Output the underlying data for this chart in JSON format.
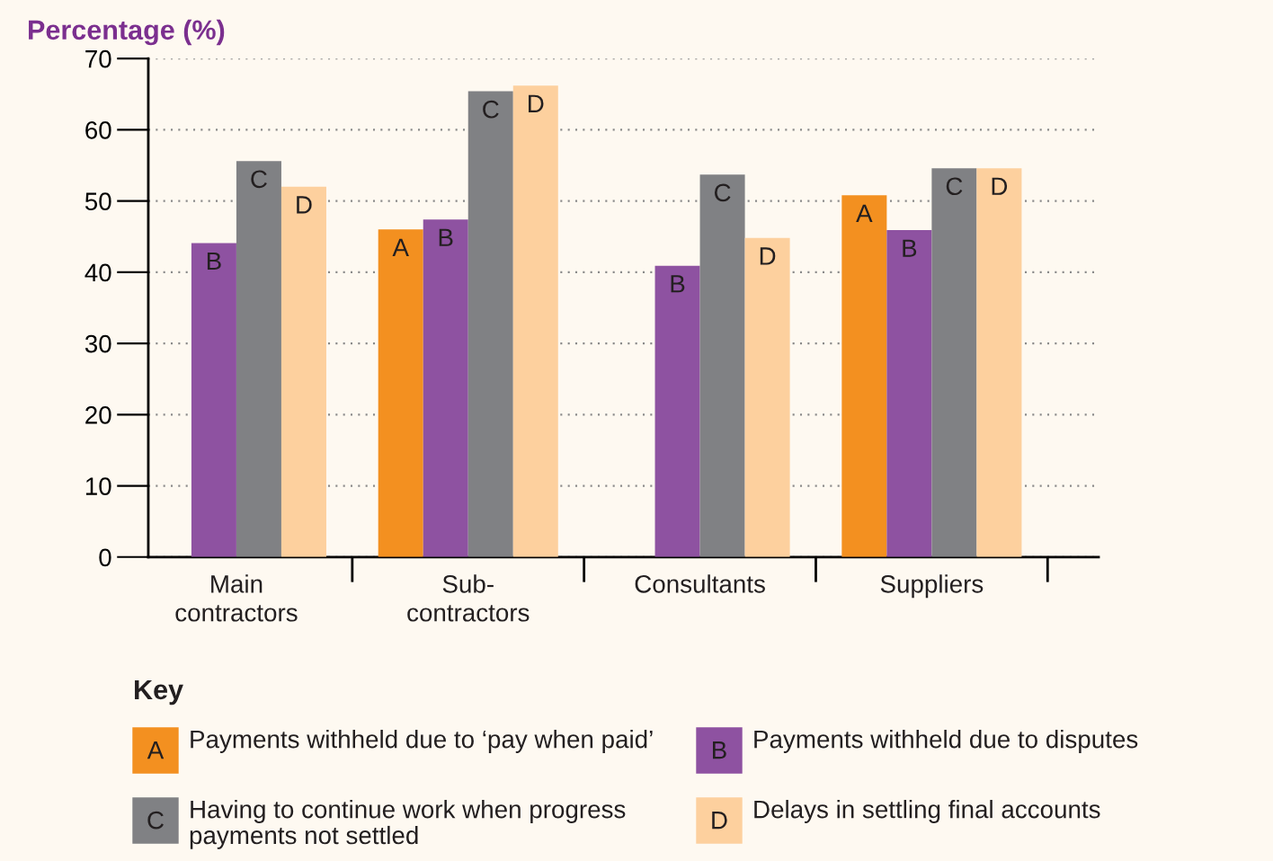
{
  "chart_data": {
    "type": "bar",
    "ylabel": "Percentage (%)",
    "legend_title": "Key",
    "categories": [
      "Main contractors",
      "Sub-contractors",
      "Consultants",
      "Suppliers"
    ],
    "series": [
      {
        "name": "Payments withheld due to ‘pay when paid’",
        "color": "#f39020",
        "values": [
          null,
          46.0,
          null,
          50.8
        ],
        "value_labels": [
          null,
          "A",
          null,
          "A"
        ]
      },
      {
        "name": "Payments withheld due to disputes",
        "color": "#8e52a1",
        "values": [
          44.1,
          47.4,
          40.9,
          45.9
        ],
        "value_labels": [
          "B",
          "B",
          "B",
          "B"
        ]
      },
      {
        "name": "Having to continue work when progress payments not settled",
        "color": "#808184",
        "values": [
          55.6,
          65.4,
          53.7,
          54.6
        ],
        "value_labels": [
          "C",
          "C",
          "C",
          "C"
        ]
      },
      {
        "name": "Delays in settling final accounts",
        "color": "#fdd09e",
        "values": [
          52.0,
          66.2,
          44.8,
          54.6
        ],
        "value_labels": [
          "D",
          "D",
          "D",
          "D"
        ]
      }
    ],
    "ylim": [
      0,
      70
    ],
    "yticks": [
      0,
      10,
      20,
      30,
      40,
      50,
      60,
      70
    ],
    "grid": "y",
    "legend": "bottom"
  }
}
